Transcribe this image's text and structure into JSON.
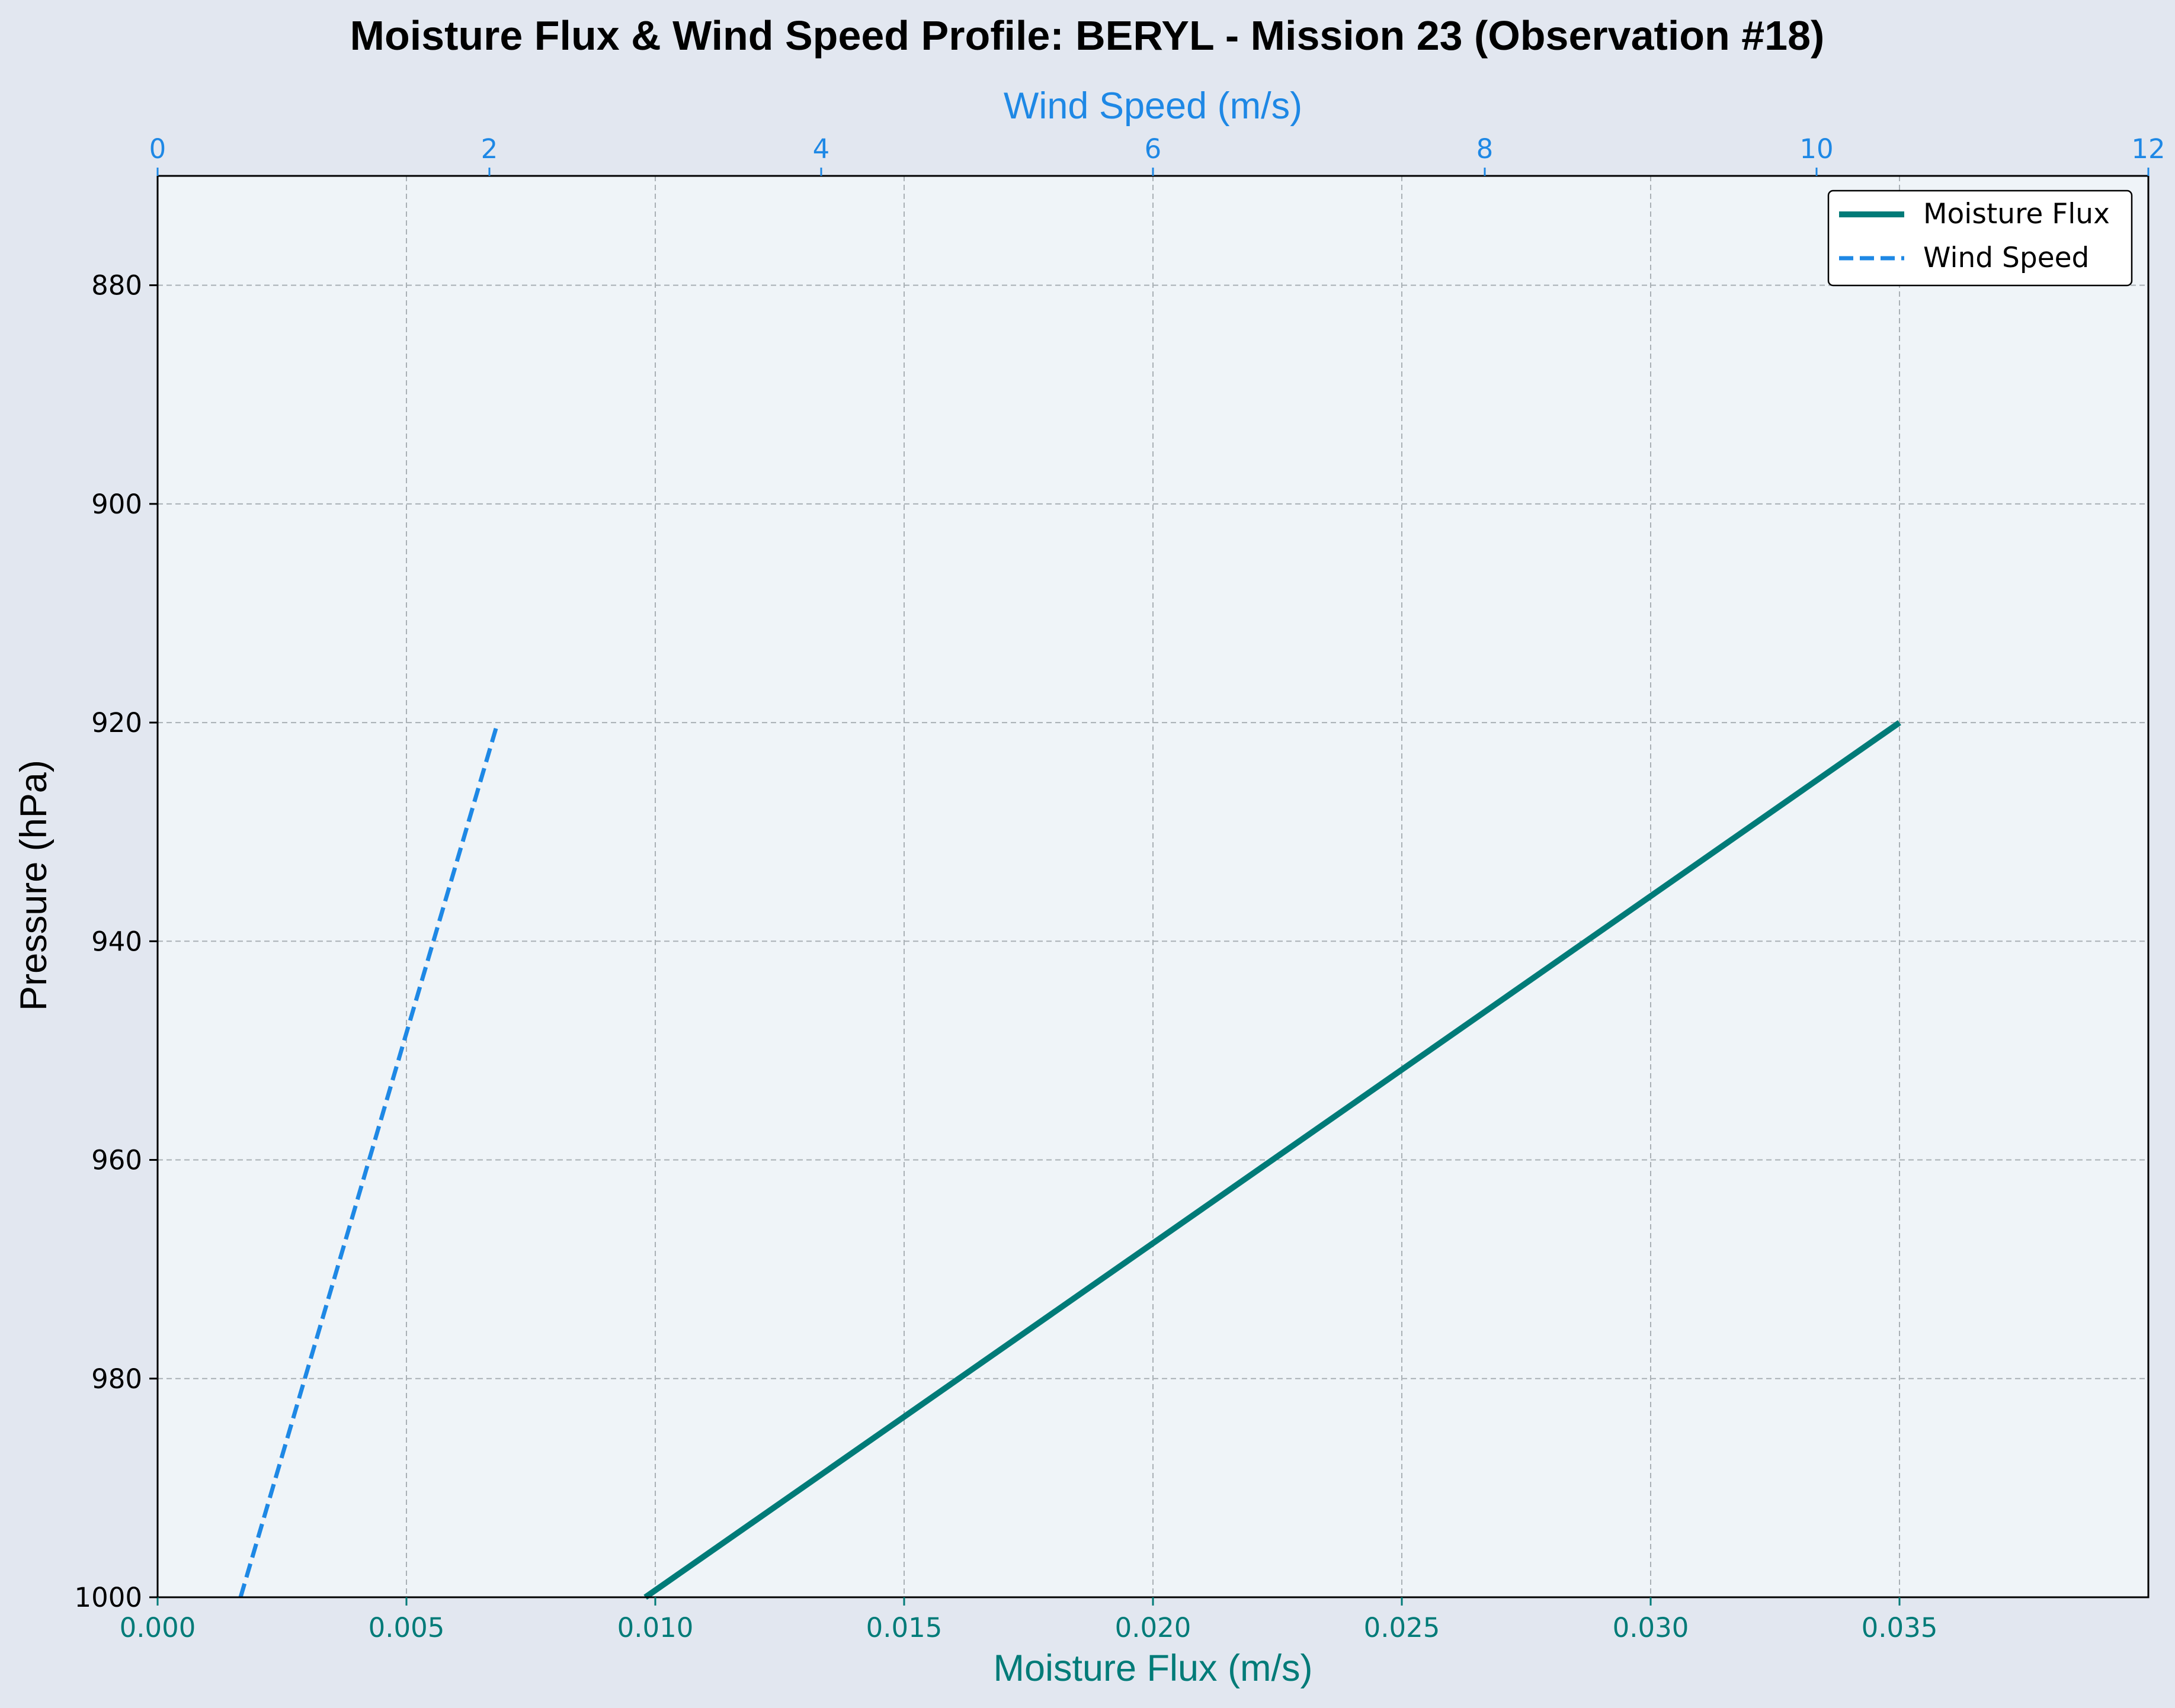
{
  "chart_data": {
    "type": "line",
    "title": "Moisture Flux & Wind Speed Profile: BERYL - Mission 23 (Observation #18)",
    "xlabel": "Moisture Flux (m/s)",
    "x2label": "Wind Speed (m/s)",
    "ylabel": "Pressure (hPa)",
    "xlim": [
      0.0,
      0.04
    ],
    "x2lim": [
      0,
      12
    ],
    "ylim": [
      1000,
      870
    ],
    "x_ticks": [
      "0.000",
      "0.005",
      "0.010",
      "0.015",
      "0.020",
      "0.025",
      "0.030",
      "0.035"
    ],
    "x2_ticks": [
      "0",
      "2",
      "4",
      "6",
      "8",
      "10",
      "12"
    ],
    "y_ticks": [
      "880",
      "900",
      "920",
      "940",
      "960",
      "980",
      "1000"
    ],
    "grid": true,
    "legend_position": "top-right",
    "series": [
      {
        "name": "Moisture Flux",
        "axis": "bottom",
        "style": "solid",
        "color": "#007b78",
        "points": [
          {
            "x": 0.0098,
            "y": 1000
          },
          {
            "x": 0.035,
            "y": 920
          }
        ]
      },
      {
        "name": "Wind Speed",
        "axis": "top",
        "style": "dashed",
        "color": "#1e88e5",
        "points": [
          {
            "x": 0.5,
            "y": 1000
          },
          {
            "x": 2.05,
            "y": 920
          }
        ]
      }
    ],
    "colors": {
      "figure_bg": "#e2e7f0",
      "plot_bg": "#eff4f8",
      "grid": "#a9b0b5",
      "bottom_axis": "#007b78",
      "top_axis": "#1e88e5",
      "text": "#000000"
    }
  }
}
